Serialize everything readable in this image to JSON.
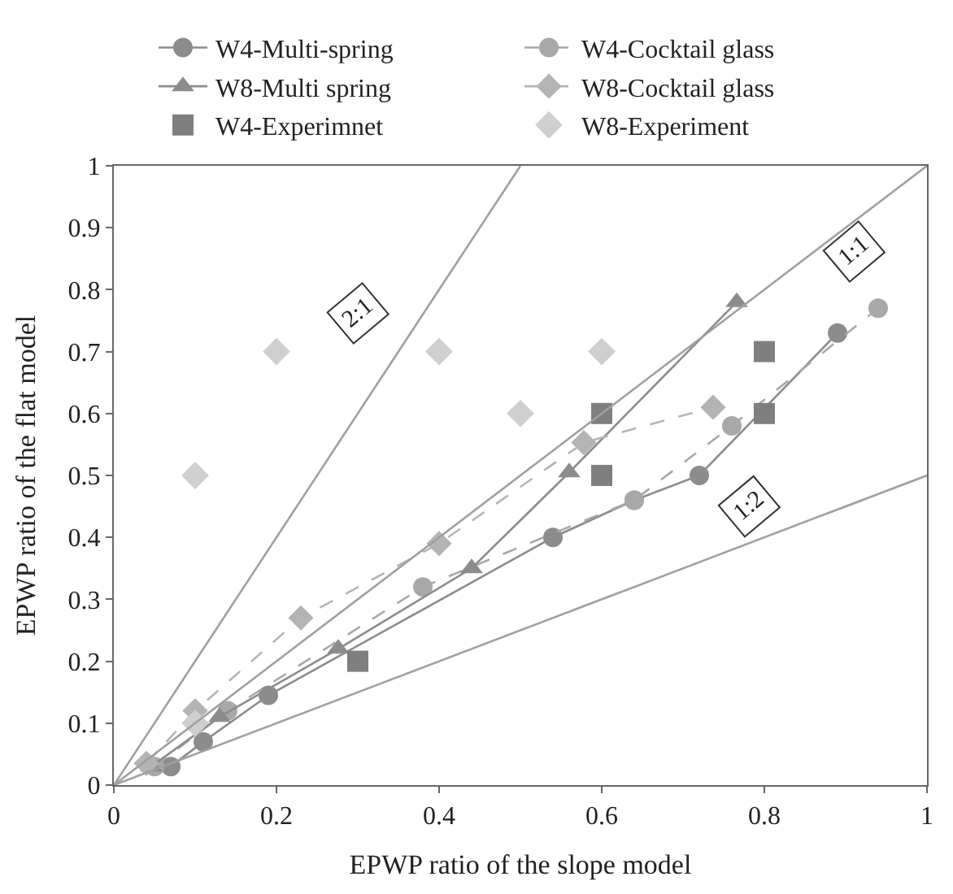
{
  "chart_data": {
    "type": "line",
    "xlabel": "EPWP ratio of the slope model",
    "ylabel": "EPWP ratio of the flat model",
    "xlim": [
      0,
      1
    ],
    "ylim": [
      0,
      1
    ],
    "xticks": [
      0,
      0.2,
      0.4,
      0.6,
      0.8,
      1
    ],
    "yticks": [
      0,
      0.1,
      0.2,
      0.3,
      0.4,
      0.5,
      0.6,
      0.7,
      0.8,
      0.9,
      1
    ],
    "legend": "top",
    "series": [
      {
        "name": "W4-Multi-spring",
        "color": "#8c8c8c",
        "line_style": "solid",
        "marker": "circle",
        "x": [
          0.07,
          0.11,
          0.19,
          0.54,
          0.64,
          0.72,
          0.89
        ],
        "values": [
          0.03,
          0.07,
          0.145,
          0.4,
          0.46,
          0.5,
          0.73
        ]
      },
      {
        "name": "W4-Cocktail glass",
        "color": "#a8a8a8",
        "line_style": "dashed",
        "marker": "circle",
        "x": [
          0.05,
          0.14,
          0.38,
          0.64,
          0.76,
          0.94
        ],
        "values": [
          0.03,
          0.12,
          0.32,
          0.46,
          0.58,
          0.77
        ]
      },
      {
        "name": "W8-Multi spring",
        "color": "#8c8c8c",
        "line_style": "solid",
        "marker": "triangle",
        "x": [
          0.046,
          0.13,
          0.276,
          0.44,
          0.56,
          0.766
        ],
        "values": [
          0.03,
          0.11,
          0.22,
          0.35,
          0.505,
          0.78
        ]
      },
      {
        "name": "W8-Cocktail glass",
        "color": "#b4b4b4",
        "line_style": "dashed",
        "marker": "diamond",
        "x": [
          0.04,
          0.1,
          0.23,
          0.4,
          0.578,
          0.737
        ],
        "values": [
          0.035,
          0.12,
          0.27,
          0.39,
          0.553,
          0.61
        ]
      },
      {
        "name": "W4-Experimnet",
        "color": "#7f7f7f",
        "type": "scatter",
        "marker": "square",
        "x": [
          0.3,
          0.6,
          0.6,
          0.8,
          0.8
        ],
        "values": [
          0.2,
          0.6,
          0.5,
          0.7,
          0.6
        ]
      },
      {
        "name": "W8-Experiment",
        "color": "#cfcfcf",
        "type": "scatter",
        "marker": "diamond",
        "x": [
          0.1,
          0.1,
          0.2,
          0.4,
          0.5,
          0.6
        ],
        "values": [
          0.1,
          0.5,
          0.7,
          0.7,
          0.6,
          0.7
        ]
      },
      {
        "color": "#a0a0a0",
        "type": "line",
        "line_style": "solid",
        "marker": "none",
        "x": [
          0,
          0.5
        ],
        "values": [
          0,
          1
        ]
      },
      {
        "color": "#a0a0a0",
        "type": "line",
        "line_style": "solid",
        "marker": "none",
        "x": [
          0,
          1
        ],
        "values": [
          0,
          1
        ]
      },
      {
        "color": "#a0a0a0",
        "type": "line",
        "line_style": "solid",
        "marker": "none",
        "x": [
          0,
          1
        ],
        "values": [
          0,
          0.5
        ]
      }
    ],
    "annotations": [
      {
        "text": "2:1",
        "x": 0.3,
        "y": 0.76
      },
      {
        "text": "1:1",
        "x": 0.91,
        "y": 0.86
      },
      {
        "text": "1:2",
        "x": 0.78,
        "y": 0.45
      }
    ]
  }
}
